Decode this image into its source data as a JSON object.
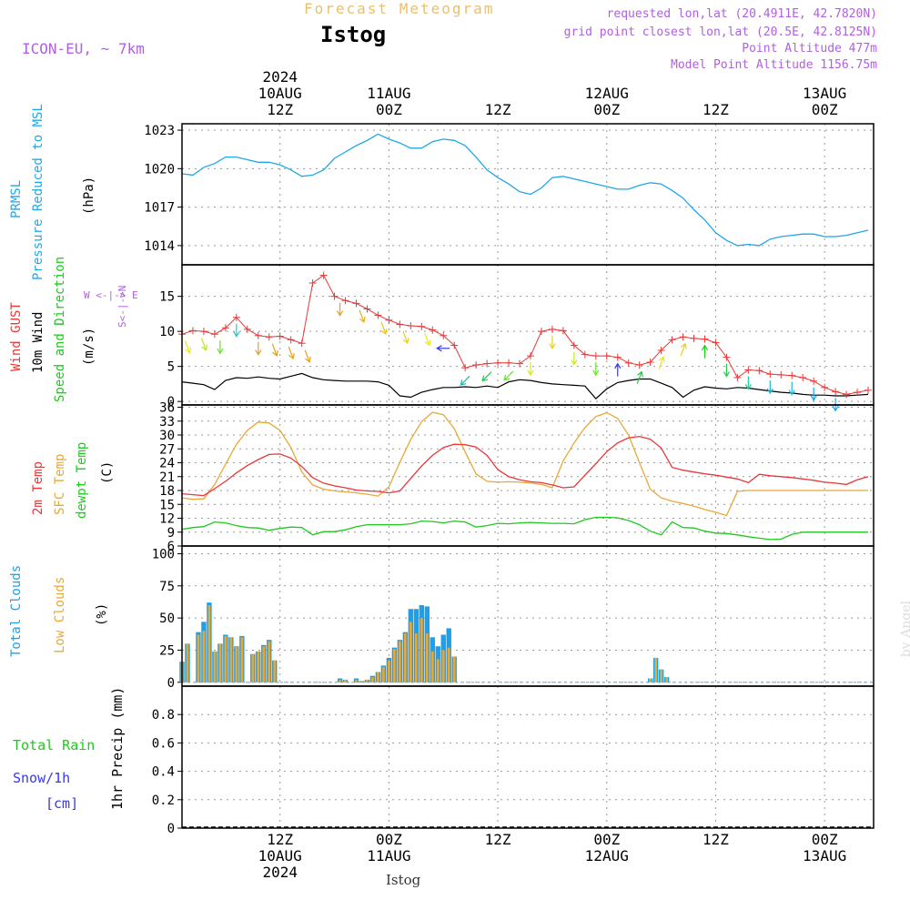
{
  "header": {
    "title": "Forecast Meteogram",
    "location": "Istog",
    "model": "ICON-EU, ~ 7km",
    "requested": "requested lon,lat (20.4911E, 42.7820N)",
    "grid_point": "grid point closest lon,lat (20.5E, 42.8125N)",
    "point_alt": "Point Altitude 477m",
    "model_alt": "Model Point Altitude 1156.75m",
    "footer": "Istog",
    "watermark": "by Angel"
  },
  "axis_labels": {
    "pressure": [
      "PRMSL",
      "Pressure Reduced to MSL",
      "(hPa)"
    ],
    "wind": [
      "Wind GUST",
      "10m Wind",
      "Speed and Direction",
      "(m/s)"
    ],
    "compass": "W <-|-> E",
    "compass2": "S<-|->N",
    "temp": [
      "2m Temp",
      "SFC Temp",
      "dewpt Temp",
      "(C)"
    ],
    "clouds": [
      "Total Clouds",
      "Low Clouds",
      "(%)"
    ],
    "precip_left": [
      "Total  Rain",
      "Snow/1h",
      "[cm]"
    ],
    "precip": "1hr Precip (mm)"
  },
  "time_axis": {
    "top": [
      {
        "lines": [
          "2024",
          "10AUG",
          "12Z"
        ]
      },
      {
        "lines": [
          "11AUG",
          "00Z"
        ]
      },
      {
        "lines": [
          "12Z"
        ]
      },
      {
        "lines": [
          "12AUG",
          "00Z"
        ]
      },
      {
        "lines": [
          "12Z"
        ]
      },
      {
        "lines": [
          "13AUG",
          "00Z"
        ]
      }
    ],
    "bottom": [
      {
        "lines": [
          "12Z",
          "10AUG",
          "2024"
        ]
      },
      {
        "lines": [
          "00Z",
          "11AUG"
        ]
      },
      {
        "lines": [
          "12Z"
        ]
      },
      {
        "lines": [
          "00Z",
          "12AUG"
        ]
      },
      {
        "lines": [
          "12Z"
        ]
      },
      {
        "lines": [
          "00Z",
          "13AUG"
        ]
      }
    ]
  },
  "colors": {
    "pressure": "#1ea8e8",
    "gust": "#e83838",
    "wind": "#000000",
    "t2m": "#e83838",
    "sfc": "#e8a838",
    "dewpt": "#20c820",
    "total_clouds": "#1ea0e8",
    "low_clouds": "#e8a838",
    "rain": "#20c820",
    "snow": "#3838e8",
    "label_purple": "#b060e0"
  },
  "chart_data": [
    {
      "type": "line",
      "name": "pressure",
      "ylim": [
        1012.5,
        1023.5
      ],
      "yticks": [
        1014,
        1017,
        1020,
        1023
      ],
      "x_hours": [
        0,
        2,
        4,
        6,
        8,
        10,
        12,
        14,
        16,
        18,
        20,
        22,
        24,
        26,
        28,
        30,
        32,
        34,
        36,
        38,
        40,
        42,
        44,
        46,
        48,
        50,
        52,
        54,
        56,
        58,
        60,
        62,
        64,
        66,
        68,
        70,
        72,
        74,
        76,
        78,
        80,
        82,
        84,
        86,
        88,
        90,
        92,
        94,
        96,
        98,
        100,
        102,
        104,
        106,
        108,
        110,
        112,
        114,
        116,
        118,
        120,
        122,
        124,
        126
      ],
      "values": [
        1019.6,
        1019.5,
        1020.1,
        1020.4,
        1020.9,
        1020.9,
        1020.7,
        1020.5,
        1020.5,
        1020.3,
        1019.9,
        1019.4,
        1019.5,
        1019.9,
        1020.8,
        1021.3,
        1021.8,
        1022.2,
        1022.7,
        1022.3,
        1022.0,
        1021.6,
        1021.6,
        1022.1,
        1022.3,
        1022.2,
        1021.8,
        1020.9,
        1019.9,
        1019.3,
        1018.8,
        1018.2,
        1018.0,
        1018.5,
        1019.3,
        1019.4,
        1019.2,
        1019.0,
        1018.8,
        1018.6,
        1018.4,
        1018.4,
        1018.7,
        1018.9,
        1018.8,
        1018.3,
        1017.7,
        1016.8,
        1016.0,
        1015.0,
        1014.4,
        1014.0,
        1014.1,
        1014.0,
        1014.5,
        1014.7,
        1014.8,
        1014.9,
        1014.9,
        1014.7,
        1014.7,
        1014.8,
        1015.0,
        1015.2
      ]
    },
    {
      "type": "line",
      "name": "wind",
      "ylim": [
        -0.5,
        19.5
      ],
      "yticks": [
        0,
        5,
        10,
        15
      ],
      "gust_x_hours": [
        0,
        2,
        4,
        6,
        8,
        10,
        12,
        14,
        16,
        18,
        20,
        22,
        24,
        26,
        28,
        30,
        32,
        34,
        36,
        38,
        40,
        42,
        44,
        46,
        48,
        50,
        52,
        54,
        56,
        58,
        60,
        62,
        64,
        66,
        68,
        70,
        72,
        74,
        76,
        78,
        80,
        82,
        84,
        86,
        88,
        90,
        92,
        94,
        96,
        98,
        100,
        102,
        104,
        106,
        108,
        110,
        112,
        114,
        116,
        118,
        120,
        122,
        124,
        126
      ],
      "gust": [
        9.6,
        10.1,
        10.0,
        9.6,
        10.5,
        12.0,
        10.3,
        9.4,
        9.2,
        9.3,
        8.8,
        8.3,
        16.9,
        18.0,
        15.0,
        14.4,
        14.0,
        13.2,
        12.3,
        11.6,
        11.0,
        10.8,
        10.7,
        10.2,
        9.4,
        8.0,
        4.8,
        5.2,
        5.4,
        5.5,
        5.5,
        5.4,
        6.5,
        10.0,
        10.3,
        10.1,
        8.0,
        6.7,
        6.5,
        6.5,
        6.3,
        5.5,
        5.2,
        5.6,
        7.3,
        8.8,
        9.2,
        9.0,
        8.9,
        8.4,
        6.3,
        3.4,
        4.5,
        4.4,
        3.9,
        3.8,
        3.7,
        3.4,
        2.9,
        2.0,
        1.4,
        1.0,
        1.3,
        1.6
      ],
      "wind_x_hours": [
        0,
        2,
        4,
        6,
        8,
        10,
        12,
        14,
        16,
        18,
        20,
        22,
        24,
        26,
        28,
        30,
        32,
        34,
        36,
        38,
        40,
        42,
        44,
        46,
        48,
        50,
        52,
        54,
        56,
        58,
        60,
        62,
        64,
        66,
        68,
        70,
        72,
        74,
        76,
        78,
        80,
        82,
        84,
        86,
        88,
        90,
        92,
        94,
        96,
        98,
        100,
        102,
        104,
        106,
        108,
        110,
        112,
        114,
        116,
        118,
        120,
        122,
        124,
        126
      ],
      "wind": [
        2.8,
        2.6,
        2.4,
        1.7,
        3.0,
        3.4,
        3.3,
        3.5,
        3.3,
        3.2,
        3.6,
        4.0,
        3.4,
        3.1,
        3.0,
        2.9,
        2.9,
        2.9,
        2.8,
        2.3,
        0.8,
        0.6,
        1.3,
        1.7,
        2.0,
        2.0,
        2.1,
        2.0,
        2.2,
        2.0,
        2.8,
        3.1,
        3.0,
        2.7,
        2.5,
        2.4,
        2.3,
        2.2,
        0.4,
        1.8,
        2.7,
        3.0,
        3.2,
        3.2,
        2.6,
        2.0,
        0.6,
        1.6,
        2.1,
        1.9,
        1.8,
        2.0,
        1.9,
        1.7,
        1.5,
        1.3,
        1.2,
        1.0,
        0.9,
        0.9,
        0.8,
        0.8,
        0.9,
        1.0
      ],
      "barbs": [
        {
          "x_hour": 1,
          "dir": "sse",
          "c": "#e8e820"
        },
        {
          "x_hour": 4,
          "dir": "sse",
          "c": "#b8e820"
        },
        {
          "x_hour": 7,
          "dir": "s",
          "c": "#60e820"
        },
        {
          "x_hour": 10,
          "dir": "s",
          "c": "#20c8c8"
        },
        {
          "x_hour": 14,
          "dir": "s",
          "c": "#e8a020"
        },
        {
          "x_hour": 17,
          "dir": "sse",
          "c": "#e8a020"
        },
        {
          "x_hour": 20,
          "dir": "sse",
          "c": "#e8a020"
        },
        {
          "x_hour": 23,
          "dir": "sse",
          "c": "#e8a020"
        },
        {
          "x_hour": 29,
          "dir": "s",
          "c": "#e8a020"
        },
        {
          "x_hour": 33,
          "dir": "sse",
          "c": "#e8b020"
        },
        {
          "x_hour": 37,
          "dir": "sse",
          "c": "#e8c820"
        },
        {
          "x_hour": 41,
          "dir": "sse",
          "c": "#e8d020"
        },
        {
          "x_hour": 45,
          "dir": "sse",
          "c": "#e8e820"
        },
        {
          "x_hour": 48,
          "dir": "w",
          "c": "#3838e8"
        },
        {
          "x_hour": 52,
          "dir": "sw",
          "c": "#20b8a8"
        },
        {
          "x_hour": 56,
          "dir": "sw",
          "c": "#20c850"
        },
        {
          "x_hour": 60,
          "dir": "sw",
          "c": "#60e820"
        },
        {
          "x_hour": 64,
          "dir": "s",
          "c": "#d8e820"
        },
        {
          "x_hour": 68,
          "dir": "s",
          "c": "#e8d020"
        },
        {
          "x_hour": 72,
          "dir": "s",
          "c": "#c8e820"
        },
        {
          "x_hour": 76,
          "dir": "s",
          "c": "#60e820"
        },
        {
          "x_hour": 80,
          "dir": "n",
          "c": "#3838e8"
        },
        {
          "x_hour": 84,
          "dir": "nne",
          "c": "#20c850"
        },
        {
          "x_hour": 88,
          "dir": "nne",
          "c": "#e8e820"
        },
        {
          "x_hour": 92,
          "dir": "nne",
          "c": "#e8d020"
        },
        {
          "x_hour": 96,
          "dir": "n",
          "c": "#20c820"
        },
        {
          "x_hour": 100,
          "dir": "s",
          "c": "#20c850"
        },
        {
          "x_hour": 104,
          "dir": "s",
          "c": "#20c8a0"
        },
        {
          "x_hour": 108,
          "dir": "s",
          "c": "#20b8c8"
        },
        {
          "x_hour": 112,
          "dir": "s",
          "c": "#20b8e0"
        },
        {
          "x_hour": 116,
          "dir": "s",
          "c": "#1ea8e8"
        },
        {
          "x_hour": 120,
          "dir": "s",
          "c": "#1ea8e8"
        }
      ]
    },
    {
      "type": "line",
      "name": "temperature",
      "ylim": [
        6,
        36.5
      ],
      "yticks": [
        6,
        9,
        12,
        15,
        18,
        21,
        24,
        27,
        30,
        33,
        36
      ],
      "x_hours": [
        0,
        2,
        4,
        6,
        8,
        10,
        12,
        14,
        16,
        18,
        20,
        22,
        24,
        26,
        28,
        30,
        32,
        34,
        36,
        38,
        40,
        42,
        44,
        46,
        48,
        50,
        52,
        54,
        56,
        58,
        60,
        62,
        64,
        66,
        68,
        70,
        72,
        74,
        76,
        78,
        80,
        82,
        84,
        86,
        88,
        90,
        92,
        94,
        96,
        98,
        100,
        102,
        104,
        106,
        108,
        110,
        112,
        114,
        116,
        118,
        120,
        122,
        124,
        126
      ],
      "t2m": [
        17.3,
        17.1,
        16.9,
        18.4,
        20.0,
        21.8,
        23.4,
        24.7,
        25.8,
        25.9,
        25.0,
        23.2,
        20.8,
        19.6,
        19.0,
        18.6,
        18.1,
        17.9,
        17.8,
        17.5,
        17.9,
        20.6,
        23.3,
        25.6,
        27.3,
        28.0,
        27.9,
        27.4,
        25.6,
        22.5,
        21.0,
        20.3,
        19.9,
        19.7,
        19.2,
        18.6,
        18.8,
        21.3,
        23.8,
        26.4,
        28.3,
        29.4,
        29.7,
        29.1,
        27.2,
        23.0,
        22.4,
        22.0,
        21.6,
        21.3,
        20.9,
        20.5,
        19.7,
        21.5,
        21.2,
        21.0,
        20.8,
        20.5,
        20.2,
        19.8,
        19.6,
        19.3,
        20.3,
        21.0
      ],
      "sfc": [
        16.4,
        16.1,
        16.2,
        19.3,
        23.7,
        28.0,
        31.0,
        32.8,
        32.6,
        31.0,
        27.3,
        22.0,
        19.2,
        18.3,
        17.9,
        17.7,
        17.5,
        17.2,
        16.8,
        18.8,
        24.1,
        29.0,
        32.9,
        34.9,
        34.4,
        31.4,
        26.3,
        21.6,
        20.0,
        19.8,
        19.9,
        19.8,
        19.6,
        19.3,
        18.6,
        24.4,
        28.3,
        31.6,
        34.0,
        34.8,
        33.6,
        30.0,
        24.0,
        18.3,
        16.4,
        15.7,
        15.2,
        14.6,
        13.9,
        13.3,
        12.6,
        17.8,
        18.0,
        18.0,
        18.0,
        18.0,
        18.0,
        18.0,
        18.0,
        18.0,
        18.0,
        18.0,
        18.0,
        18.0
      ],
      "dewpt": [
        9.6,
        10.0,
        10.2,
        11.2,
        11.0,
        10.4,
        10.0,
        9.9,
        9.4,
        9.8,
        10.1,
        10.0,
        8.4,
        9.1,
        9.1,
        9.5,
        10.2,
        10.6,
        10.6,
        10.6,
        10.6,
        10.8,
        11.4,
        11.3,
        11.0,
        11.4,
        11.2,
        10.1,
        10.4,
        10.9,
        10.8,
        11.0,
        11.1,
        11.0,
        10.9,
        10.9,
        10.8,
        11.7,
        12.2,
        12.2,
        12.1,
        11.5,
        10.6,
        9.2,
        8.4,
        11.2,
        10.0,
        9.9,
        9.2,
        8.8,
        8.7,
        8.4,
        8.0,
        7.7,
        7.4,
        7.5,
        8.5,
        9.0,
        9.0,
        9.0,
        9.0,
        9.0,
        9.0,
        9.0
      ]
    },
    {
      "type": "bar",
      "name": "clouds",
      "ylim": [
        -3,
        106
      ],
      "yticks": [
        0,
        25,
        50,
        75,
        100
      ],
      "x_hours": [
        0,
        1,
        2,
        3,
        4,
        5,
        6,
        7,
        8,
        9,
        10,
        11,
        12,
        13,
        14,
        15,
        16,
        17,
        18,
        19,
        20,
        21,
        22,
        23,
        24,
        25,
        26,
        27,
        28,
        29,
        30,
        31,
        32,
        33,
        34,
        35,
        36,
        37,
        38,
        39,
        40,
        41,
        42,
        43,
        44,
        45,
        46,
        47,
        48,
        49,
        50,
        51,
        52,
        53,
        54,
        55,
        56,
        57,
        58,
        59,
        60,
        61,
        62,
        63,
        64,
        65,
        66,
        67,
        68,
        69,
        70,
        71,
        72,
        73,
        74,
        75,
        76,
        77,
        78,
        79,
        80,
        81,
        82,
        83,
        84,
        85,
        86,
        87,
        88,
        89,
        90,
        91,
        92,
        93,
        94,
        95,
        96,
        97,
        98,
        99,
        100,
        101,
        102,
        103,
        104,
        105,
        106,
        107,
        108,
        109,
        110,
        111,
        112,
        113,
        114,
        115,
        116,
        117,
        118,
        119,
        120,
        121,
        122,
        123,
        124,
        125,
        126
      ],
      "total": [
        16,
        30,
        0,
        39,
        47,
        62,
        24,
        30,
        37,
        35,
        28,
        36,
        0,
        22,
        24,
        29,
        33,
        17,
        0,
        0,
        0,
        0,
        0,
        0,
        0,
        0,
        0,
        0,
        0,
        3,
        2,
        0,
        3,
        1,
        2,
        5,
        8,
        13,
        19,
        27,
        33,
        39,
        57,
        57,
        60,
        59,
        35,
        28,
        37,
        42,
        20,
        0,
        0,
        0,
        0,
        0,
        0,
        0,
        0,
        0,
        0,
        0,
        0,
        0,
        0,
        0,
        0,
        0,
        0,
        0,
        0,
        0,
        0,
        0,
        0,
        0,
        0,
        0,
        0,
        0,
        0,
        0,
        0,
        0,
        0,
        0,
        3,
        19,
        10,
        4,
        0,
        0,
        0,
        0,
        0,
        0,
        0,
        0,
        0,
        0,
        0,
        0,
        0,
        0,
        0,
        0,
        0,
        0,
        0,
        0,
        0,
        0,
        0,
        0,
        0,
        0,
        0,
        0,
        0,
        0,
        0,
        0,
        0,
        0,
        0,
        0,
        0
      ],
      "low": [
        16,
        30,
        0,
        37,
        40,
        60,
        24,
        30,
        36,
        35,
        28,
        35,
        0,
        22,
        24,
        28,
        32,
        17,
        0,
        0,
        0,
        0,
        0,
        0,
        0,
        0,
        0,
        0,
        0,
        2,
        2,
        0,
        2,
        1,
        2,
        4,
        8,
        12,
        17,
        26,
        32,
        38,
        47,
        38,
        50,
        38,
        24,
        18,
        25,
        27,
        20,
        0,
        0,
        0,
        0,
        0,
        0,
        0,
        0,
        0,
        0,
        0,
        0,
        0,
        0,
        0,
        0,
        0,
        0,
        0,
        0,
        0,
        0,
        0,
        0,
        0,
        0,
        0,
        0,
        0,
        0,
        0,
        0,
        0,
        0,
        0,
        3,
        19,
        10,
        4,
        0,
        0,
        0,
        0,
        0,
        0,
        0,
        0,
        0,
        0,
        0,
        0,
        0,
        0,
        0,
        0,
        0,
        0,
        0,
        0,
        0,
        0,
        0,
        0,
        0,
        0,
        0,
        0,
        0,
        0,
        0,
        0,
        0,
        0,
        0,
        0,
        0
      ]
    },
    {
      "type": "bar",
      "name": "precip",
      "ylim": [
        0,
        1.0
      ],
      "yticks": [
        0,
        0.2,
        0.4,
        0.6,
        0.8
      ],
      "rain": [],
      "snow": []
    }
  ]
}
